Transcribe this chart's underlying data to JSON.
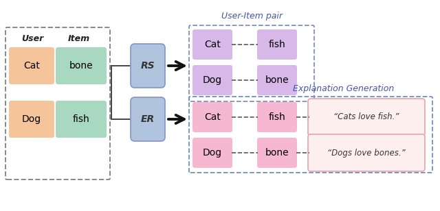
{
  "background": "#ffffff",
  "user_color": "#f5c49a",
  "item_color": "#a8d8c0",
  "rs_er_color": "#b0c4de",
  "rs_pair_color": "#d8b8e8",
  "er_pair_color": "#f5b8d0",
  "text_box_color": "#fff0f0",
  "text_box_edge": "#f0a0a0",
  "dashed_box_rs_color": "#8090c0",
  "dashed_box_er_color": "#7090c0",
  "outer_dashed_color": "#888888",
  "label_color": "#4455aa",
  "user_label": "User",
  "item_label": "Item",
  "rs_label": "RS",
  "er_label": "ER",
  "pair_label": "User-Item pair",
  "expl_label": "Explanation Generation",
  "explanations": [
    "“Cats love fish.”",
    "“Dogs love bones.”"
  ]
}
